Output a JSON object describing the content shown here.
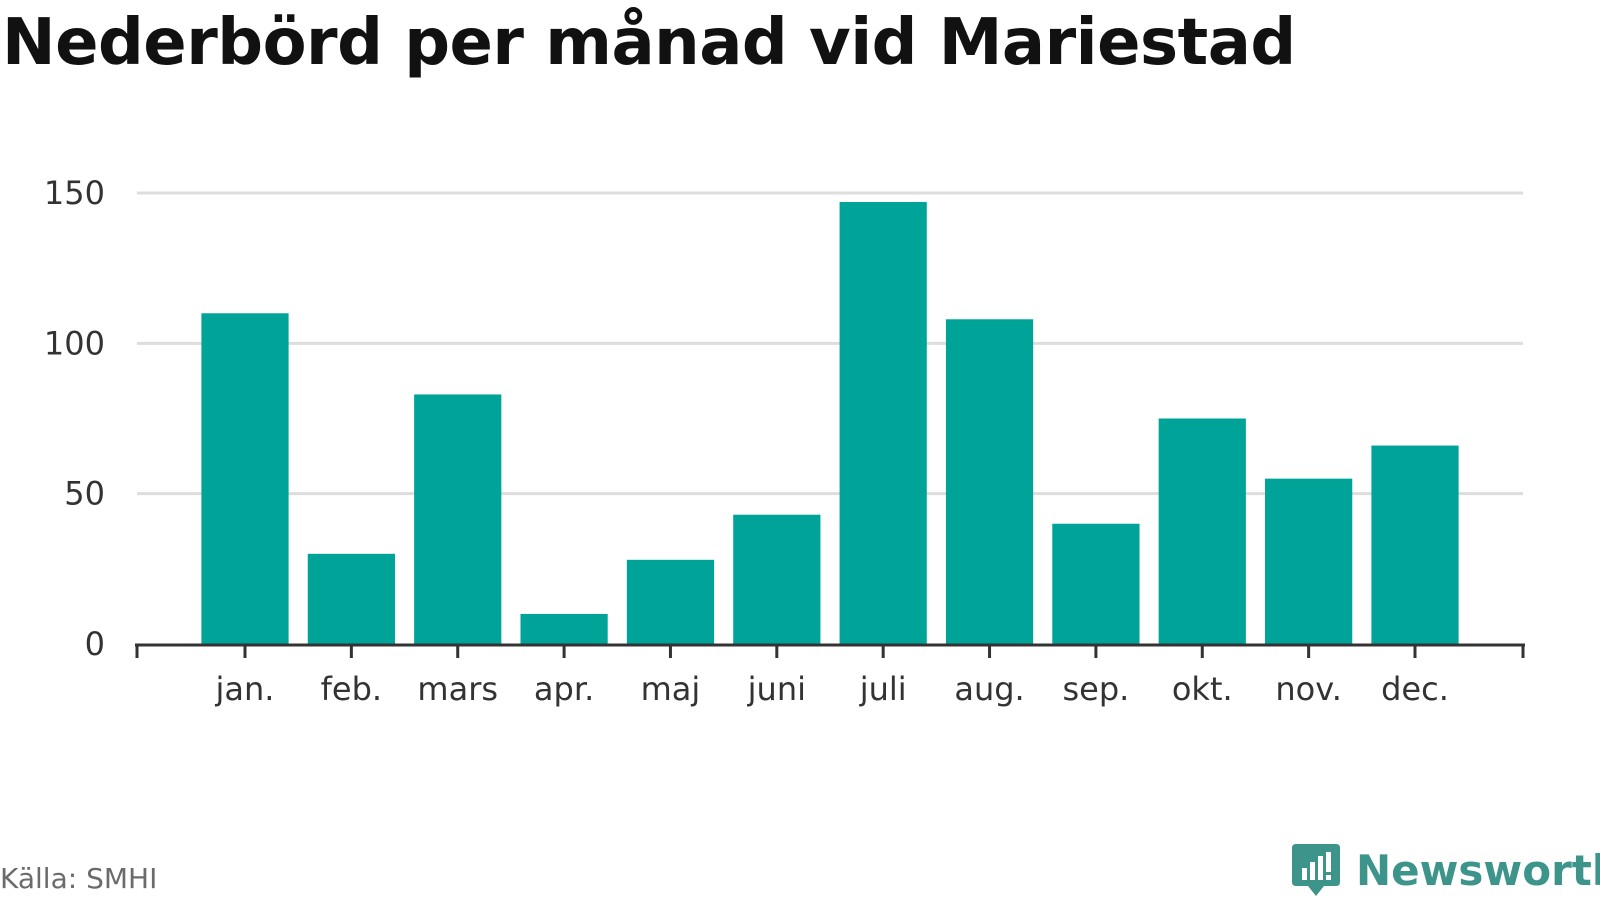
{
  "title": "Nederbörd per månad vid Mariestad",
  "source": "Källa: SMHI",
  "brand": {
    "name": "Newsworthy",
    "icon": "newsworthy-logo-icon",
    "color": "#3d948a"
  },
  "colors": {
    "bar": "#00a398",
    "grid": "#dddddd",
    "axis": "#333333"
  },
  "chart_data": {
    "type": "bar",
    "title": "Nederbörd per månad vid Mariestad",
    "categories": [
      "jan.",
      "feb.",
      "mars",
      "apr.",
      "maj",
      "juni",
      "juli",
      "aug.",
      "sep.",
      "okt.",
      "nov.",
      "dec."
    ],
    "values": [
      110,
      30,
      83,
      10,
      28,
      43,
      147,
      108,
      40,
      75,
      55,
      66
    ],
    "xlabel": "",
    "ylabel": "",
    "ylim": [
      0,
      150
    ],
    "yticks": [
      0,
      50,
      100,
      150
    ],
    "grid": true,
    "legend": "none"
  }
}
